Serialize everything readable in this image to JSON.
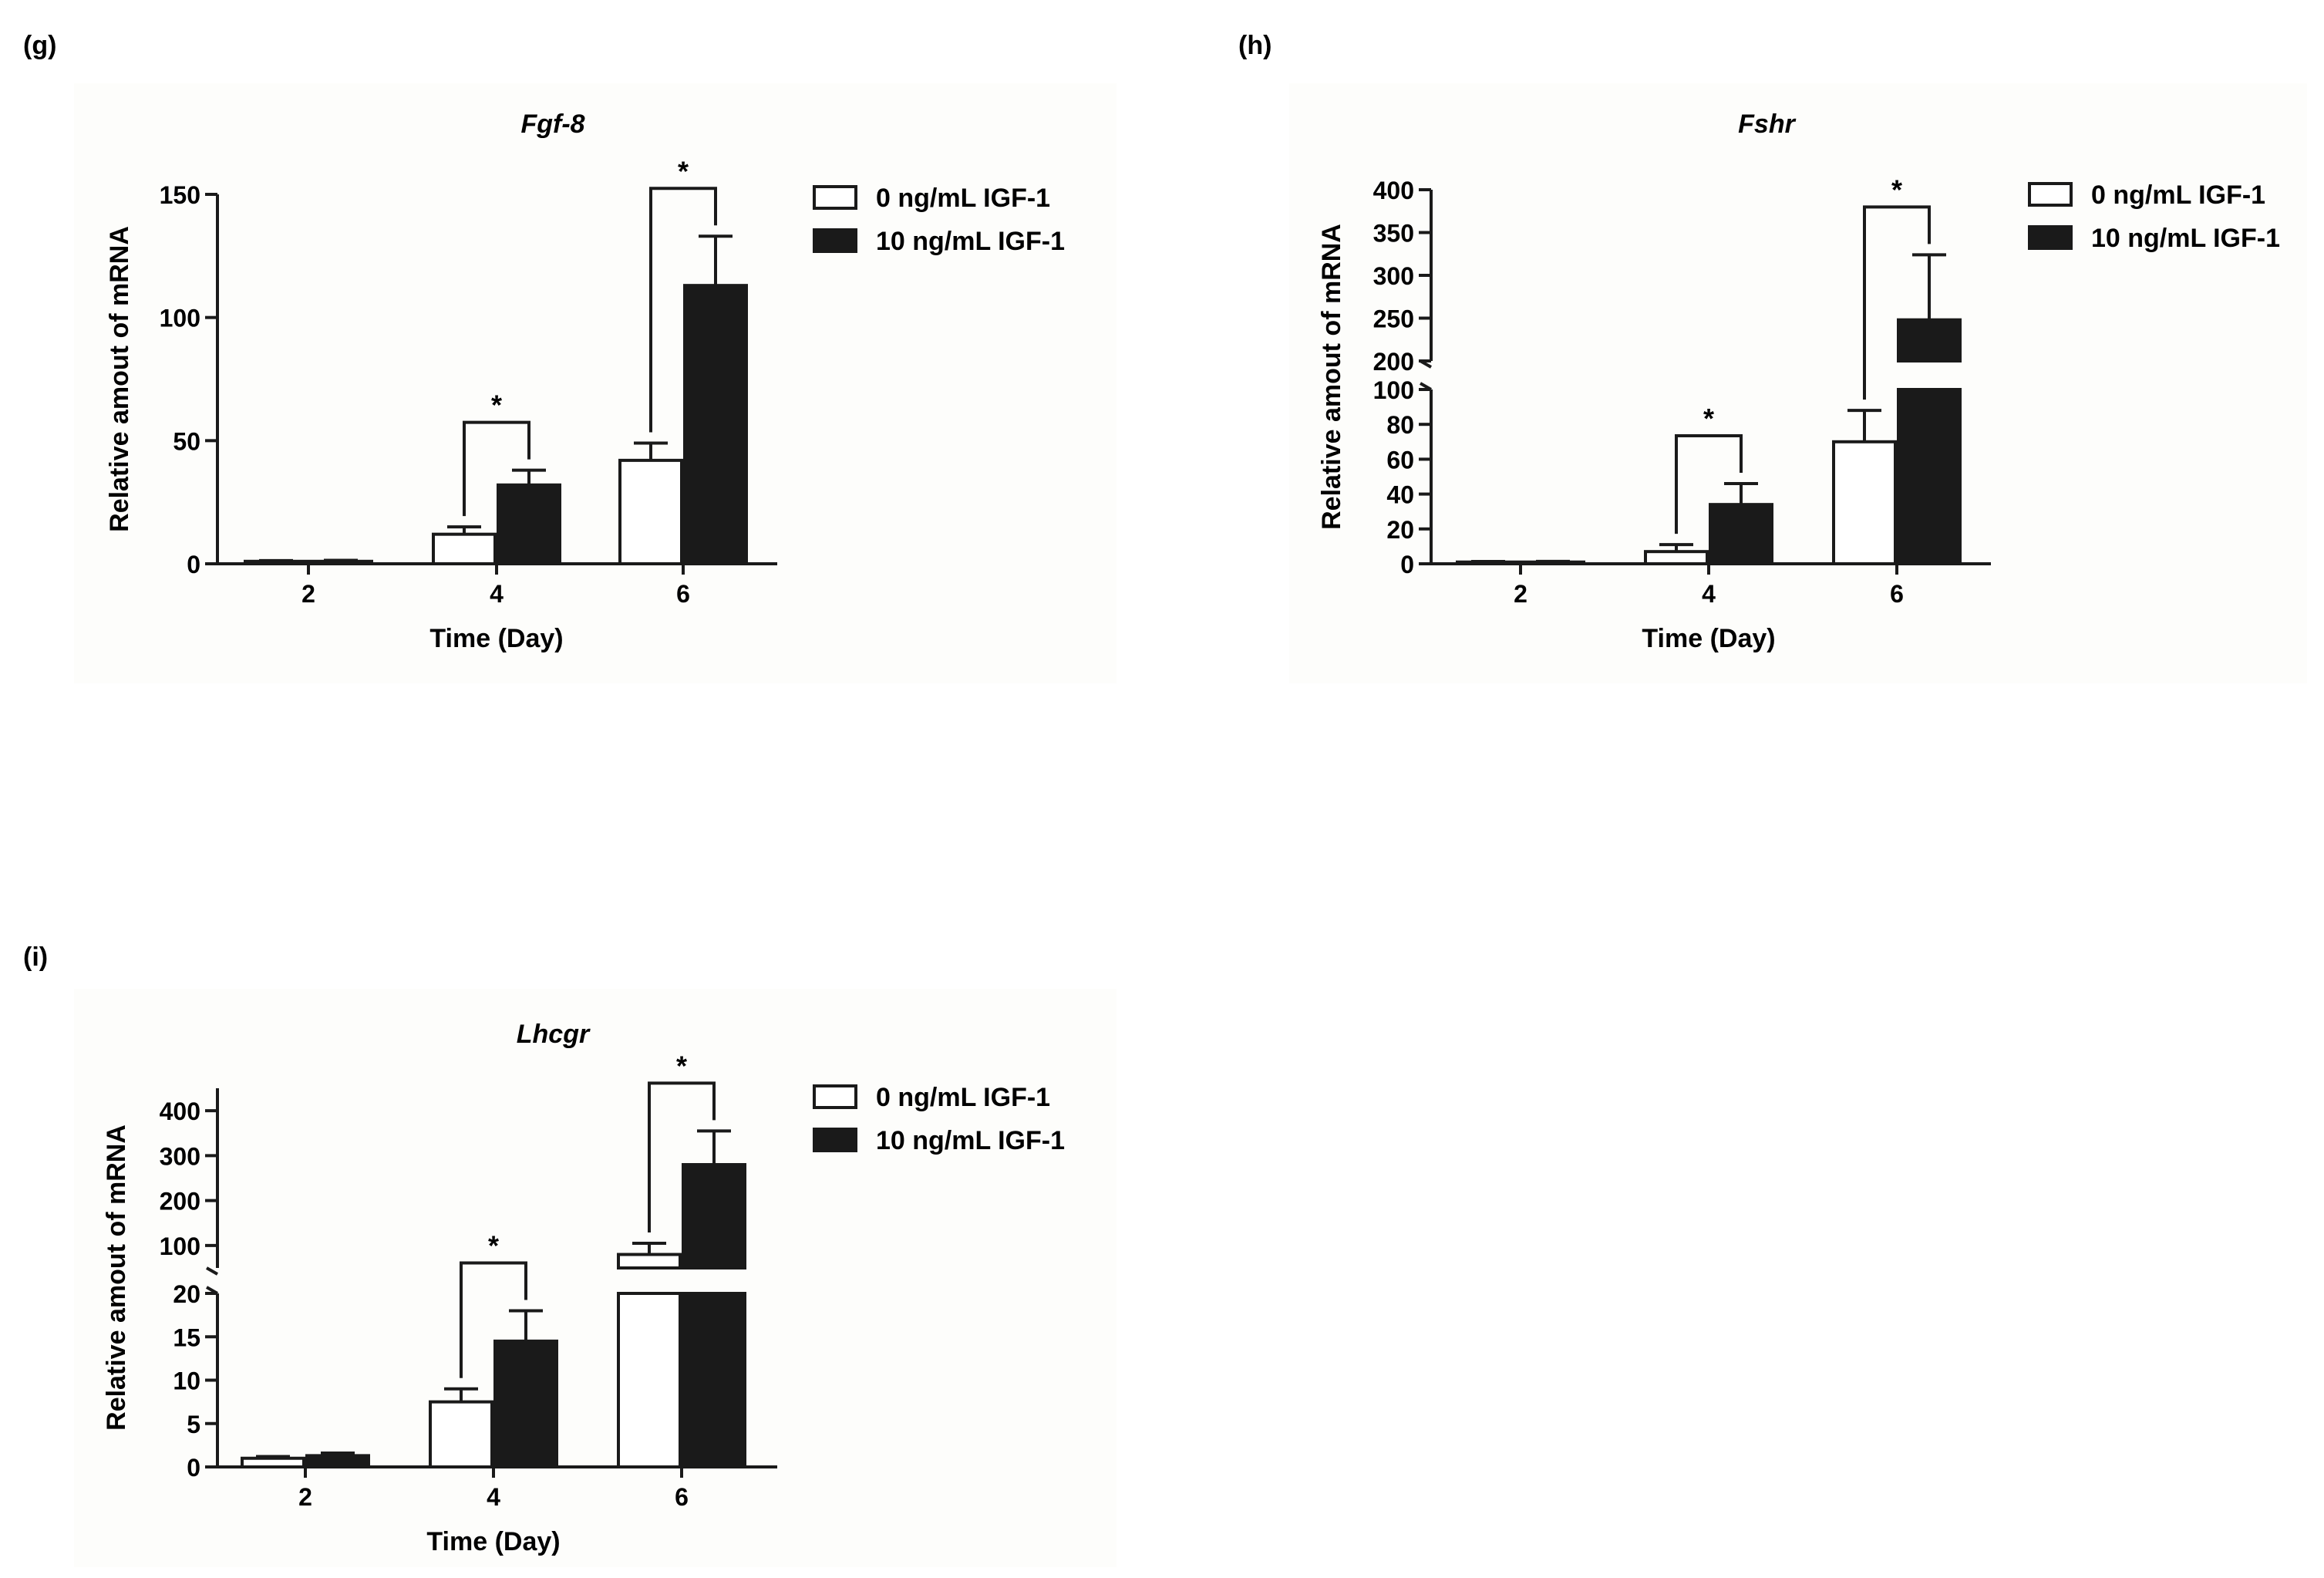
{
  "panels": [
    {
      "label": "(g)"
    },
    {
      "label": "(h)"
    },
    {
      "label": "(i)"
    }
  ],
  "chart_data": [
    {
      "type": "bar",
      "panel": "(g)",
      "title": "Fgf-8",
      "xlabel": "Time (Day)",
      "ylabel": "Relative amout of mRNA",
      "categories": [
        "2",
        "4",
        "6"
      ],
      "ylim": [
        0,
        150
      ],
      "yticks": [
        0,
        50,
        100,
        150
      ],
      "series": [
        {
          "name": "0 ng/mL IGF-1",
          "fill": "#ffffff",
          "values": [
            1,
            12,
            42
          ],
          "errors": [
            0.3,
            3,
            7
          ]
        },
        {
          "name": "10 ng/mL IGF-1",
          "fill": "#1a1a1a",
          "values": [
            1,
            32,
            113
          ],
          "errors": [
            0.4,
            6,
            20
          ]
        }
      ],
      "significance": [
        {
          "category": "4",
          "label": "*"
        },
        {
          "category": "6",
          "label": "*"
        }
      ],
      "legend_position": "right"
    },
    {
      "type": "bar",
      "panel": "(h)",
      "title": "Fshr",
      "xlabel": "Time (Day)",
      "ylabel": "Relative amout of mRNA",
      "categories": [
        "2",
        "4",
        "6"
      ],
      "axis_break": {
        "lower": [
          0,
          100
        ],
        "upper": [
          200,
          400
        ]
      },
      "yticks_lower": [
        0,
        20,
        40,
        60,
        80,
        100
      ],
      "yticks_upper": [
        200,
        250,
        300,
        350,
        400
      ],
      "series": [
        {
          "name": "0 ng/mL IGF-1",
          "fill": "#ffffff",
          "values": [
            1,
            7,
            70
          ],
          "errors": [
            0.3,
            4,
            18
          ]
        },
        {
          "name": "10 ng/mL IGF-1",
          "fill": "#1a1a1a",
          "values": [
            1,
            34,
            248
          ],
          "errors": [
            0.4,
            12,
            76
          ]
        }
      ],
      "significance": [
        {
          "category": "4",
          "label": "*"
        },
        {
          "category": "6",
          "label": "*"
        }
      ],
      "legend_position": "right"
    },
    {
      "type": "bar",
      "panel": "(i)",
      "title": "Lhcgr",
      "xlabel": "Time (Day)",
      "ylabel": "Relative amout of mRNA",
      "categories": [
        "2",
        "4",
        "6"
      ],
      "axis_break": {
        "lower": [
          0,
          20
        ],
        "upper": [
          50,
          450
        ]
      },
      "yticks_lower": [
        0,
        5,
        10,
        15,
        20
      ],
      "yticks_upper": [
        100,
        200,
        300,
        400
      ],
      "series": [
        {
          "name": "0 ng/mL IGF-1",
          "fill": "#ffffff",
          "values": [
            1,
            7.5,
            80
          ],
          "errors": [
            0.2,
            1.5,
            25
          ]
        },
        {
          "name": "10 ng/mL IGF-1",
          "fill": "#1a1a1a",
          "values": [
            1.3,
            14.5,
            280
          ],
          "errors": [
            0.3,
            3.5,
            75
          ]
        }
      ],
      "significance": [
        {
          "category": "4",
          "label": "*"
        },
        {
          "category": "6",
          "label": "*"
        }
      ],
      "legend_position": "right"
    }
  ]
}
